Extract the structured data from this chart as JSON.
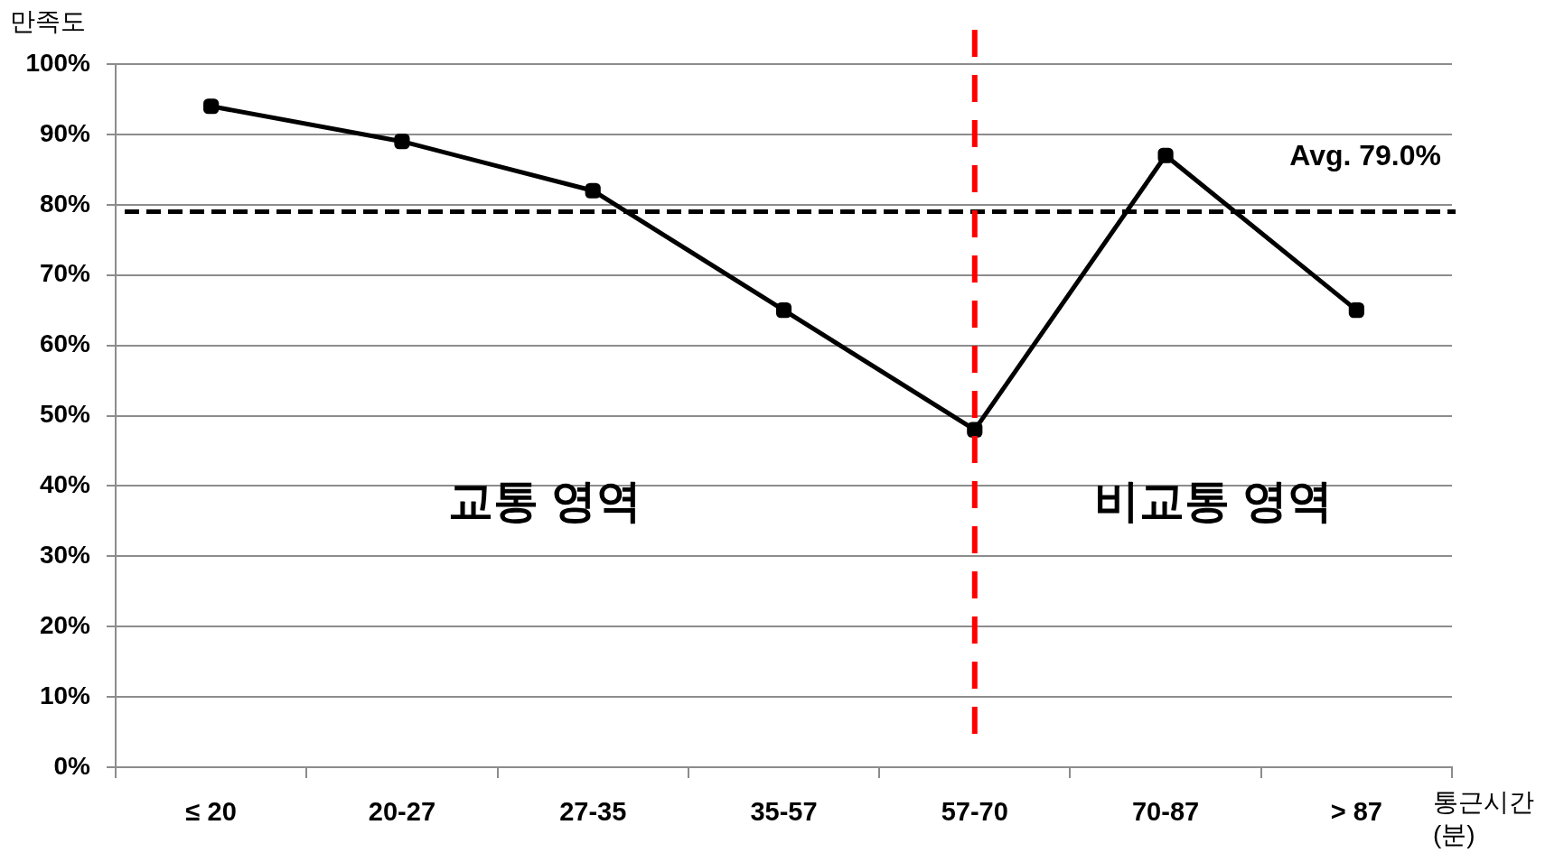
{
  "chart_data": {
    "type": "line",
    "ylabel": "만족도",
    "xlabel": "통근시간 (분)",
    "categories": [
      "≤ 20",
      "20-27",
      "27-35",
      "35-57",
      "57-70",
      "70-87",
      "> 87"
    ],
    "series": [
      {
        "color": "#000000",
        "values": [
          94,
          89,
          82,
          65,
          48,
          87,
          65
        ]
      }
    ],
    "ylim": [
      0,
      100
    ],
    "yticks": [
      {
        "value": 0,
        "label": "0%"
      },
      {
        "value": 10,
        "label": "10%"
      },
      {
        "value": 20,
        "label": "20%"
      },
      {
        "value": 30,
        "label": "30%"
      },
      {
        "value": 40,
        "label": "40%"
      },
      {
        "value": 50,
        "label": "50%"
      },
      {
        "value": 60,
        "label": "60%"
      },
      {
        "value": 70,
        "label": "70%"
      },
      {
        "value": 80,
        "label": "80%"
      },
      {
        "value": 90,
        "label": "90%"
      },
      {
        "value": 100,
        "label": "100%"
      }
    ],
    "grid": "y",
    "legend": false,
    "marker": "square",
    "line_style": "solid",
    "ref_lines": [
      {
        "axis": "y",
        "value": 79,
        "label": "Avg. 79.0%",
        "color": "#000000",
        "line_style": "dashed"
      },
      {
        "axis": "x",
        "value": "57-70",
        "color": "#ff0000",
        "line_style": "dashed"
      }
    ],
    "annotations": [
      "교통 영역",
      "비교통 영역"
    ]
  }
}
